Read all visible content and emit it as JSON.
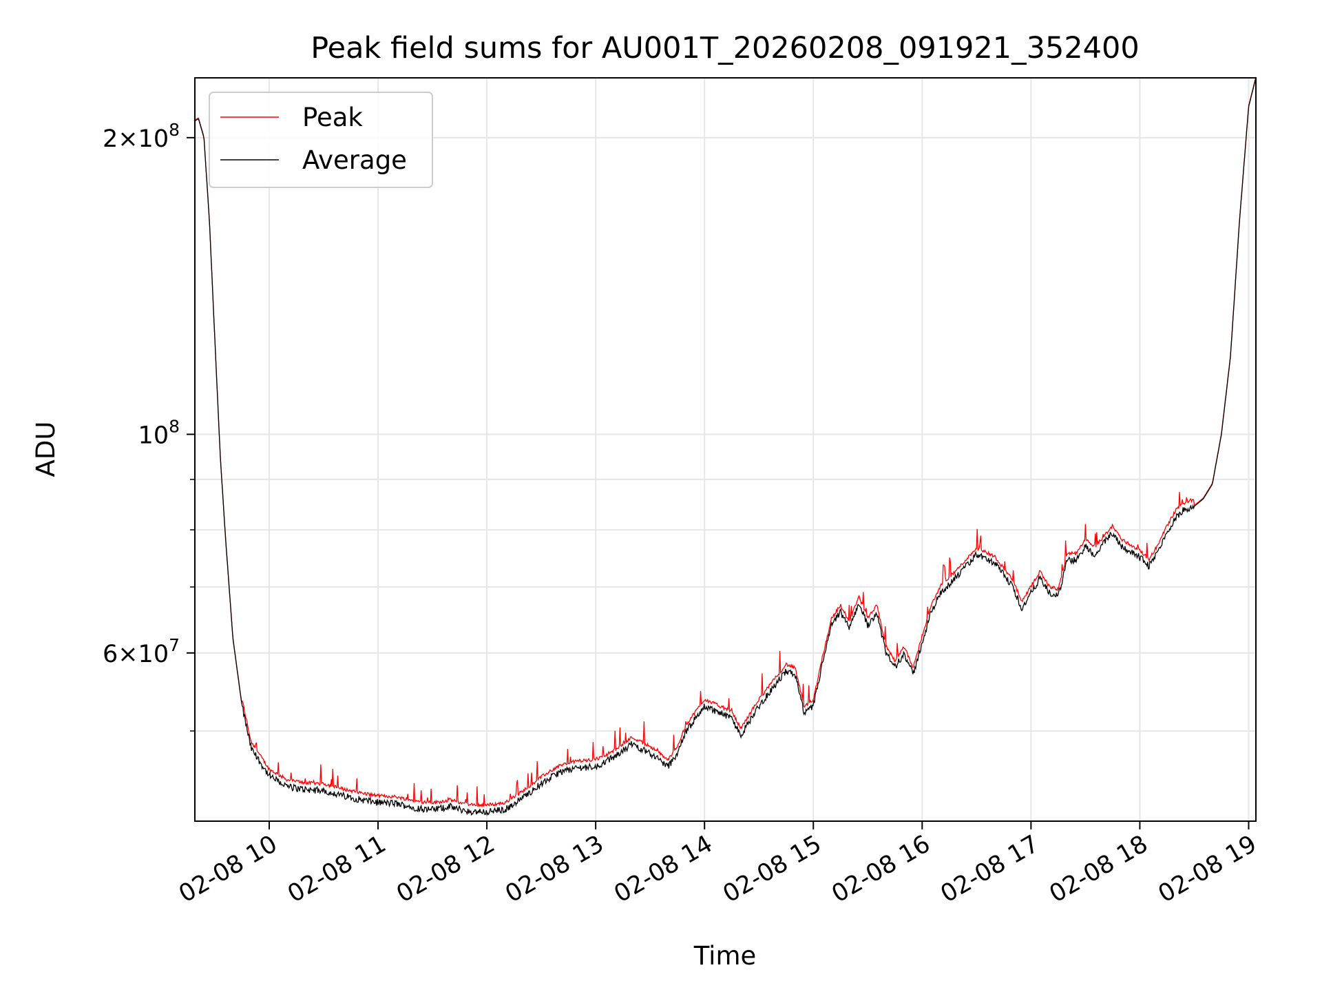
{
  "chart_data": {
    "type": "line",
    "title": "Peak field sums for AU001T_20260208_091921_352400",
    "xlabel": "Time",
    "ylabel": "ADU",
    "x_range": [
      "02-08 09:19",
      "02-08 19:04"
    ],
    "ylim": [
      40500000,
      230000000
    ],
    "yscale": "log",
    "grid": true,
    "legend_position": "upper-left",
    "x_ticks": [
      "02-08 10",
      "02-08 11",
      "02-08 12",
      "02-08 13",
      "02-08 14",
      "02-08 15",
      "02-08 16",
      "02-08 17",
      "02-08 18",
      "02-08 19"
    ],
    "y_ticks": [
      {
        "value": 200000000,
        "mantissa": "2",
        "exp": "8"
      },
      {
        "value": 100000000,
        "mantissa": "",
        "exp": "8"
      },
      {
        "value": 60000000,
        "mantissa": "6",
        "exp": "7"
      }
    ],
    "y_minor_ticks": [
      50000000,
      70000000,
      80000000,
      90000000
    ],
    "series": [
      {
        "name": "Peak",
        "color": "#ff0000"
      },
      {
        "name": "Average",
        "color": "#000000"
      }
    ],
    "average_profile": {
      "time": [
        "09:19",
        "09:21",
        "09:24",
        "09:27",
        "09:30",
        "09:33",
        "09:36",
        "09:40",
        "09:45",
        "09:50",
        "10:00",
        "10:10",
        "10:20",
        "10:30",
        "10:40",
        "10:50",
        "11:00",
        "11:10",
        "11:20",
        "11:30",
        "11:40",
        "11:50",
        "12:00",
        "12:10",
        "12:20",
        "12:30",
        "12:40",
        "12:50",
        "13:00",
        "13:10",
        "13:20",
        "13:30",
        "13:40",
        "13:45",
        "13:50",
        "14:00",
        "14:05",
        "14:10",
        "14:15",
        "14:20",
        "14:30",
        "14:40",
        "14:45",
        "14:50",
        "14:55",
        "15:00",
        "15:05",
        "15:10",
        "15:15",
        "15:20",
        "15:25",
        "15:30",
        "15:35",
        "15:40",
        "15:45",
        "15:50",
        "15:55",
        "16:00",
        "16:05",
        "16:10",
        "16:20",
        "16:30",
        "16:40",
        "16:50",
        "16:55",
        "17:00",
        "17:05",
        "17:10",
        "17:15",
        "17:20",
        "17:25",
        "17:30",
        "17:35",
        "17:40",
        "17:45",
        "17:50",
        "18:00",
        "18:05",
        "18:10",
        "18:15",
        "18:20",
        "18:25",
        "18:30",
        "18:35",
        "18:40",
        "18:45",
        "18:50",
        "18:55",
        "19:00",
        "19:04"
      ],
      "adu": [
        208000000,
        209000000,
        200000000,
        165000000,
        125000000,
        95000000,
        78000000,
        62000000,
        53000000,
        48000000,
        45000000,
        43900000,
        43600000,
        43500000,
        43000000,
        42600000,
        42300000,
        42200000,
        41800000,
        41600000,
        41900000,
        41400000,
        41400000,
        41600000,
        42800000,
        44200000,
        45400000,
        45900000,
        46000000,
        47000000,
        48500000,
        47500000,
        46000000,
        47500000,
        50000000,
        53000000,
        52500000,
        52000000,
        51500000,
        49500000,
        53000000,
        56000000,
        57500000,
        57000000,
        52000000,
        53000000,
        58500000,
        64000000,
        66000000,
        63500000,
        67500000,
        64000000,
        66000000,
        60000000,
        58000000,
        60000000,
        57000000,
        61500000,
        66000000,
        69000000,
        72000000,
        75500000,
        74000000,
        70000000,
        66500000,
        69000000,
        71500000,
        69000000,
        68500000,
        74500000,
        74500000,
        77000000,
        75500000,
        77500000,
        79500000,
        77000000,
        75000000,
        73500000,
        76000000,
        79500000,
        82500000,
        84000000,
        84500000,
        86000000,
        89000000,
        100000000,
        120000000,
        165000000,
        215000000,
        230000000
      ]
    }
  }
}
